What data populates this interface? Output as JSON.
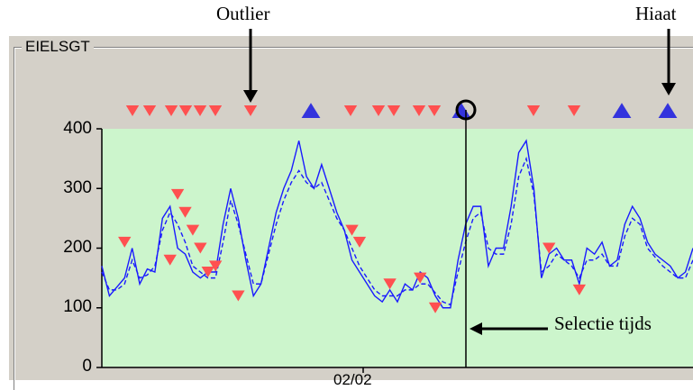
{
  "annotations": {
    "outlier": "Outlier",
    "gap": "Hiaat",
    "selection": "Selectie tijds"
  },
  "groupbox": {
    "label": "EIELSGT"
  },
  "colors": {
    "plot_bg": "#ccf5cc",
    "panel_bg": "#d4d0c8",
    "series": "#1a1aff",
    "outlier_marker": "#ff5050",
    "gap_marker": "#3333dd"
  },
  "chart_data": {
    "type": "line",
    "ylim": [
      0,
      400
    ],
    "yticks": [
      "400",
      "300",
      "200",
      "100",
      "0"
    ],
    "xtick_label": "02/02",
    "series": [
      {
        "style": "solid",
        "values": [
          170,
          120,
          135,
          150,
          200,
          140,
          165,
          160,
          250,
          270,
          200,
          190,
          160,
          150,
          160,
          160,
          240,
          300,
          250,
          180,
          120,
          140,
          200,
          260,
          300,
          330,
          380,
          320,
          300,
          340,
          300,
          260,
          230,
          180,
          160,
          140,
          120,
          110,
          130,
          110,
          140,
          130,
          160,
          150,
          120,
          100,
          100,
          180,
          240,
          270,
          270,
          170,
          200,
          200,
          270,
          360,
          380,
          300,
          150,
          190,
          200,
          180,
          180,
          140,
          200,
          190,
          210,
          170,
          180,
          240,
          270,
          250,
          210,
          190,
          180,
          170,
          150,
          160,
          200
        ]
      },
      {
        "style": "dashed",
        "values": [
          160,
          130,
          130,
          140,
          180,
          150,
          155,
          170,
          230,
          260,
          240,
          210,
          170,
          160,
          150,
          150,
          210,
          280,
          240,
          190,
          140,
          140,
          190,
          240,
          280,
          310,
          330,
          310,
          300,
          310,
          280,
          250,
          230,
          200,
          170,
          150,
          130,
          120,
          120,
          120,
          130,
          130,
          140,
          140,
          125,
          110,
          105,
          160,
          210,
          250,
          260,
          200,
          190,
          190,
          240,
          320,
          350,
          290,
          160,
          170,
          190,
          180,
          170,
          150,
          180,
          180,
          190,
          170,
          170,
          220,
          250,
          240,
          200,
          185,
          170,
          160,
          150,
          150,
          180
        ]
      }
    ],
    "outlier_markers": [
      [
        3,
        210
      ],
      [
        9,
        180
      ],
      [
        10,
        290
      ],
      [
        11,
        260
      ],
      [
        12,
        230
      ],
      [
        13,
        200
      ],
      [
        14,
        160
      ],
      [
        15,
        170
      ],
      [
        18,
        120
      ],
      [
        33,
        230
      ],
      [
        34,
        210
      ],
      [
        38,
        140
      ],
      [
        42,
        150
      ],
      [
        44,
        100
      ],
      [
        59,
        200
      ],
      [
        63,
        130
      ]
    ],
    "top_markers": {
      "outliers": [
        147,
        166,
        190,
        206,
        222,
        239,
        278,
        389,
        420,
        437,
        465,
        482,
        592,
        637
      ],
      "gaps": [
        345,
        512,
        690,
        741
      ]
    }
  }
}
